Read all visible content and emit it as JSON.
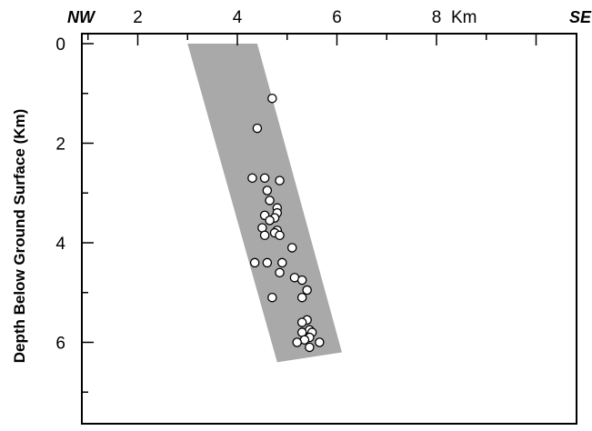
{
  "chart_data": {
    "type": "scatter",
    "title": "",
    "xlabel": "",
    "ylabel": "Depth Below Ground Surface (Km)",
    "x_unit": "Km",
    "x_direction_left": "NW",
    "x_direction_right": "SE",
    "xlim": [
      0,
      10
    ],
    "ylim": [
      0,
      7.7
    ],
    "y_inverted": true,
    "x_ticks_major": [
      2,
      4,
      6,
      8
    ],
    "x_tick_labels": [
      "2",
      "4",
      "6",
      "8"
    ],
    "y_ticks_major": [
      0,
      2,
      4,
      6
    ],
    "y_tick_labels": [
      "0",
      "2",
      "4",
      "6"
    ],
    "grid": false,
    "band": {
      "color": "#a9a9a9",
      "polygon": [
        [
          3.0,
          0.0
        ],
        [
          4.4,
          0.0
        ],
        [
          6.1,
          6.2
        ],
        [
          4.8,
          6.4
        ]
      ]
    },
    "series": [
      {
        "marker": "open-circle",
        "color": "#ffffff",
        "x": [
          4.7,
          4.4,
          4.3,
          4.55,
          4.85,
          4.6,
          4.65,
          4.8,
          4.8,
          4.55,
          4.75,
          4.65,
          4.5,
          4.8,
          4.75,
          4.55,
          4.85,
          5.1,
          4.35,
          4.6,
          4.9,
          4.85,
          5.15,
          5.3,
          5.4,
          4.7,
          5.3,
          5.4,
          5.3,
          5.45,
          5.3,
          5.5,
          5.45,
          5.35,
          5.2,
          5.65,
          5.45
        ],
        "y": [
          1.1,
          1.7,
          2.7,
          2.7,
          2.75,
          2.95,
          3.15,
          3.3,
          3.4,
          3.45,
          3.5,
          3.55,
          3.7,
          3.75,
          3.8,
          3.85,
          3.85,
          4.1,
          4.4,
          4.4,
          4.4,
          4.6,
          4.7,
          4.75,
          4.95,
          5.1,
          5.1,
          5.55,
          5.6,
          5.75,
          5.8,
          5.8,
          5.9,
          5.95,
          6.0,
          6.0,
          6.1
        ]
      }
    ]
  }
}
